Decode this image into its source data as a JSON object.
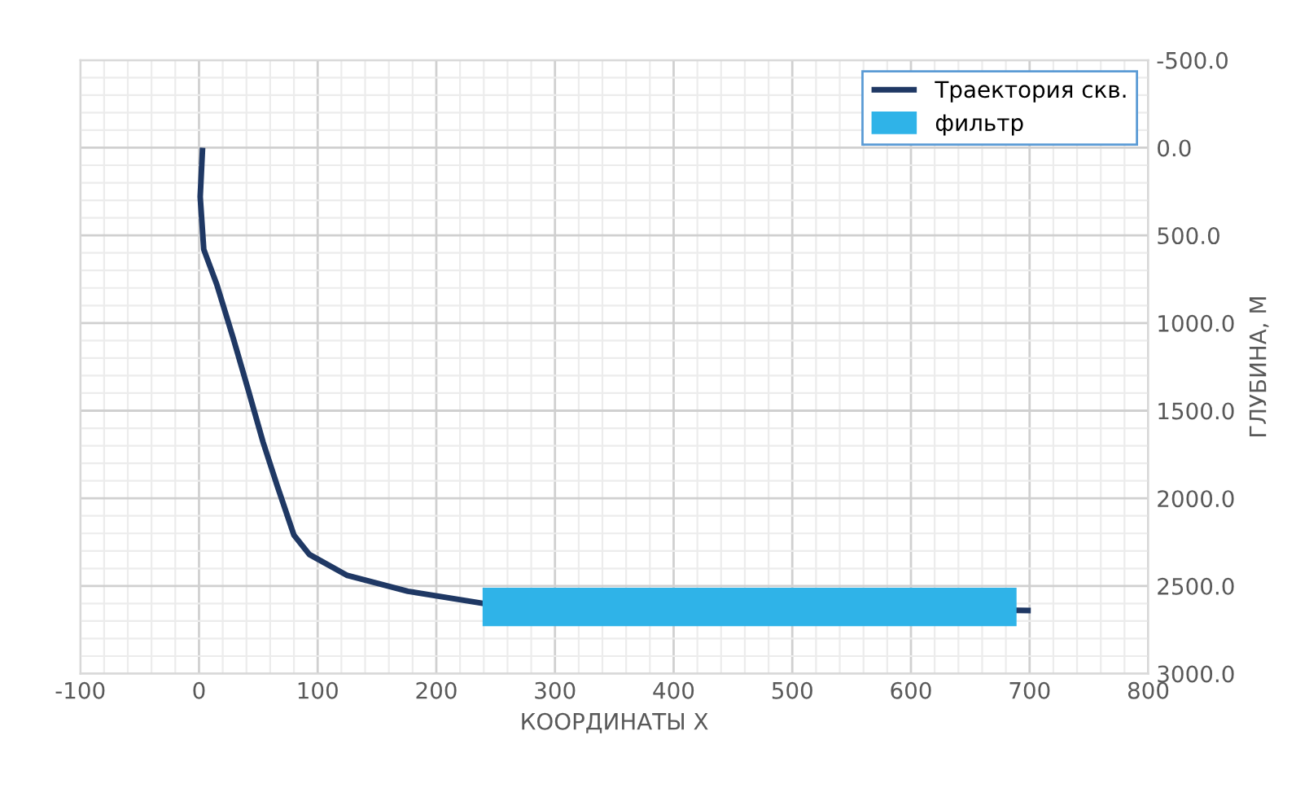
{
  "chart_data": {
    "type": "line",
    "xlabel": "КООРДИНАТЫ Х",
    "ylabel": "ГЛУБИНА, М",
    "series": [
      {
        "name": "Траектория скв.",
        "color": "#1f3864",
        "x": [
          3,
          1,
          4,
          15,
          29,
          41,
          54,
          66,
          80,
          93,
          125,
          176,
          240,
          701
        ],
        "values": [
          0,
          280,
          580,
          780,
          1090,
          1370,
          1680,
          1930,
          2210,
          2320,
          2440,
          2530,
          2600,
          2640
        ]
      },
      {
        "name": "фильтр",
        "type": "line",
        "color": "#2fb3e8",
        "x": [
          239,
          689
        ],
        "values": [
          2620,
          2620
        ]
      }
    ],
    "xlim": [
      -100,
      800
    ],
    "xticks": [
      -100,
      0,
      100,
      200,
      300,
      400,
      500,
      600,
      700,
      800
    ],
    "ylim": [
      3000,
      -500
    ],
    "yticks": [
      {
        "value": -500,
        "label": "-500.0"
      },
      {
        "value": 0,
        "label": "0.0"
      },
      {
        "value": 500,
        "label": "500.0"
      },
      {
        "value": 1000,
        "label": "1000.0"
      },
      {
        "value": 1500,
        "label": "1500.0"
      },
      {
        "value": 2000,
        "label": "2000.0"
      },
      {
        "value": 2500,
        "label": "2500.0"
      },
      {
        "value": 3000,
        "label": "3000.0"
      }
    ],
    "grid": true,
    "legend": "top right",
    "marker": "none",
    "line_style": "solid"
  }
}
